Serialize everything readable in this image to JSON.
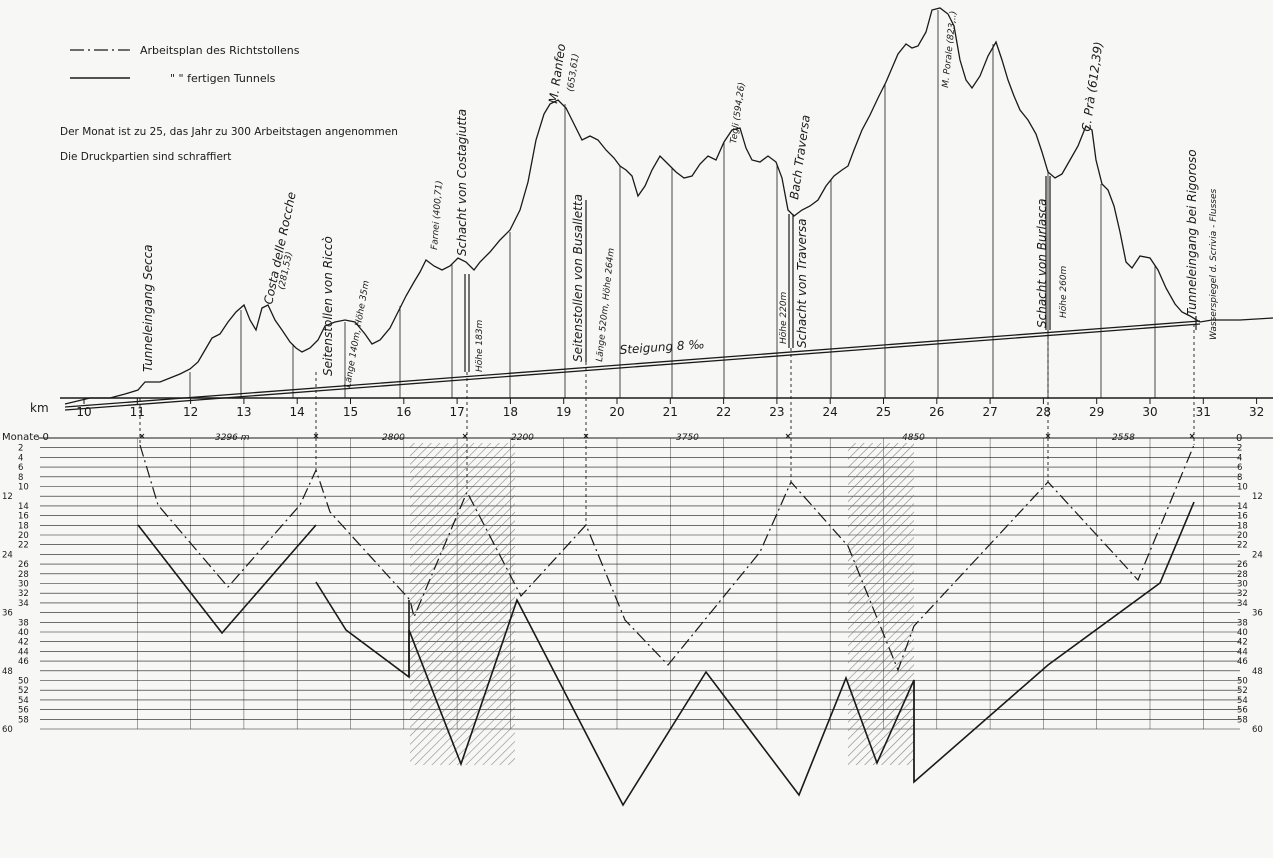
{
  "legend": {
    "heading_label": "Arbeitsplan des Richtstollens",
    "tunnel_label": "\"      \" fertigen Tunnels"
  },
  "notes": {
    "line1": "Der Monat ist zu 25, das Jahr zu 300 Arbeitstagen angenommen",
    "line2": "Die Druckpartien sind schraffiert"
  },
  "profile_labels": {
    "tunnel_secca": "Tunneleingang Secca",
    "costa_rocche": "Costa delle Rocche",
    "costa_rocche_alt": "(281,53)",
    "ricco_adit": "Seitenstollen von Riccò",
    "ricco_dims": "Länge 140m, Höhe 35m",
    "farnei": "Farnei (400,71)",
    "costagiutta_shaft": "Schacht von Costagiutta",
    "costagiutta_height": "Höhe 183m",
    "ranfeo": "M. Ranfeo",
    "ranfeo_alt": "(653,61)",
    "busalletta_adit": "Seitenstollen von Busalletta",
    "busalletta_dims": "Länge 520m, Höhe 264m",
    "tegli": "Tegli (594,26)",
    "traversa_brook": "Bach Traversa",
    "traversa_height": "Höhe 220m",
    "traversa_shaft": "Schacht von Traversa",
    "porale": "M. Porale (823,..)",
    "burlasca_shaft": "Schacht von Burlasca",
    "burlasca_height": "Höhe 260m",
    "c_pra": "C. Prà (612,39)",
    "tunnel_rigoroso": "Tunneleingang bei Rigoroso",
    "scrivia": "Wasserspiegel d. Scrivia - Flusses",
    "gradient": "Steigung 8 ‰"
  },
  "axis": {
    "km_label": "km",
    "km_ticks": [
      "10",
      "11",
      "12",
      "13",
      "14",
      "15",
      "16",
      "17",
      "18",
      "19",
      "20",
      "21",
      "22",
      "23",
      "24",
      "25",
      "26",
      "27",
      "28",
      "29",
      "30",
      "31",
      "32"
    ],
    "months_label": "Monate 0",
    "right_zero": "0",
    "month_ticks_left": [
      "2",
      "4",
      "6",
      "8",
      "10",
      "12",
      "14",
      "16",
      "18",
      "20",
      "22",
      "24",
      "26",
      "28",
      "30",
      "32",
      "34",
      "36",
      "38",
      "40",
      "42",
      "44",
      "46",
      "48",
      "50",
      "52",
      "54",
      "56",
      "58",
      "60"
    ],
    "month_ticks_right": [
      "2",
      "4",
      "6",
      "8",
      "10",
      "12",
      "14",
      "16",
      "18",
      "20",
      "22",
      "24",
      "26",
      "28",
      "30",
      "32",
      "34",
      "36",
      "38",
      "40",
      "42",
      "44",
      "46",
      "48",
      "50",
      "52",
      "54",
      "56",
      "58",
      "60"
    ]
  },
  "segments": {
    "s1": "3296 m",
    "s2": "2800",
    "s3": "2200",
    "s4": "3750",
    "s5": "4850",
    "s6": "2558"
  },
  "colors": {
    "ink": "#1a1a1a",
    "paper": "#f7f7f5",
    "hatch": "#6b6b6b"
  }
}
